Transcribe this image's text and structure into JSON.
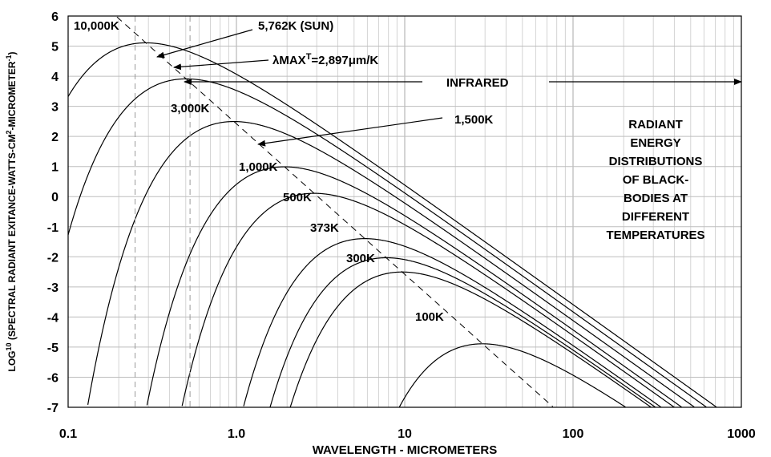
{
  "chart_data": {
    "type": "line",
    "xscale": "log",
    "xlim": [
      0.1,
      1000
    ],
    "ylim": [
      -7,
      6
    ],
    "grid": true,
    "xlabel": "WAVELENGTH - MICROMETERS",
    "ylabel": "LOG10 (SPECTRAL RADIANT EXITANCE-WATTS-CM2-MICROMETER-1)",
    "x_ticks": [
      "0.1",
      "1.0",
      "10",
      "100",
      "1000"
    ],
    "y_ticks": [
      "6",
      "5",
      "4",
      "3",
      "2",
      "1",
      "0",
      "-1",
      "-2",
      "-3",
      "-4",
      "-5",
      "-6",
      "-7"
    ],
    "series": [
      {
        "name": "10,000K",
        "T": 10000
      },
      {
        "name": "5,762K (SUN)",
        "T": 5762
      },
      {
        "name": "3,000K",
        "T": 3000
      },
      {
        "name": "1,500K",
        "T": 1500
      },
      {
        "name": "1,000K",
        "T": 1000
      },
      {
        "name": "500K",
        "T": 500
      },
      {
        "name": "373K",
        "T": 373
      },
      {
        "name": "300K",
        "T": 300
      },
      {
        "name": "100K",
        "T": 100
      }
    ],
    "wien_line": {
      "label": "λMAXT=2,897μm/K",
      "constant": 2897
    },
    "vertical_reference_lines": [
      0.25,
      0.53
    ],
    "annotations": {
      "infrared": "INFRARED",
      "title": "RADIANT ENERGY DISTRIBUTIONS OF BLACK-BODIES AT DIFFERENT TEMPERATURES"
    }
  },
  "title_lines": [
    "RADIANT",
    "ENERGY",
    "DISTRIBUTIONS",
    "OF BLACK-",
    "BODIES  AT",
    "DIFFERENT",
    "TEMPERATURES"
  ],
  "labels": {
    "t10000": "10,000K",
    "sun": "5,762K (SUN)",
    "wien_pre": "λMAX",
    "wien_sup": "T",
    "wien_post": "=2,897μm/K",
    "infrared": "INFRARED",
    "t3000": "3,000K",
    "t1500": "1,500K",
    "t1000": "1,000K",
    "t500": "500K",
    "t373": "373K",
    "t300": "300K",
    "t100": "100K"
  },
  "ylabel_parts": {
    "pre": "LOG",
    "sup1": "10",
    "mid1": " (SPECTRAL RADIANT EXITANCE-WATTS-CM",
    "sup2": "2",
    "mid2": "-MICROMETER",
    "sup3": "-1",
    "post": ")"
  }
}
